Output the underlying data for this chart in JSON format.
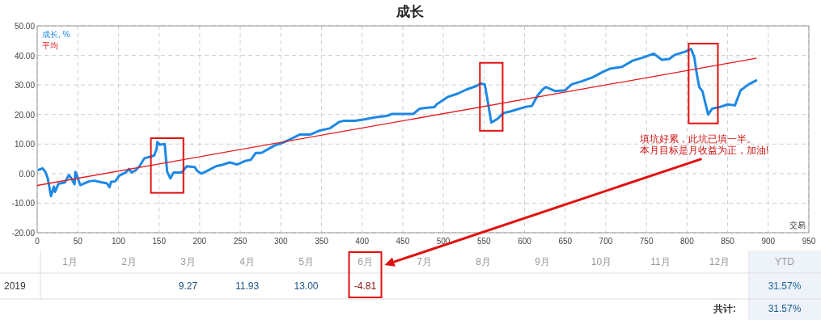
{
  "chart_data": [
    {
      "type": "line",
      "title": "成长",
      "xlabel": "交易",
      "xlim": [
        0,
        950
      ],
      "xticks": [
        0,
        50,
        100,
        150,
        200,
        250,
        300,
        350,
        400,
        450,
        500,
        550,
        600,
        650,
        700,
        750,
        800,
        850,
        900,
        950
      ],
      "ylim": [
        -20,
        50
      ],
      "yticks": [
        {
          "value": -20,
          "label": "-20.00"
        },
        {
          "value": -10,
          "label": "-10.00"
        },
        {
          "value": 0,
          "label": "0.00"
        },
        {
          "value": 10,
          "label": "10.00"
        },
        {
          "value": 20,
          "label": "20.00"
        },
        {
          "value": 30,
          "label": "30.00"
        },
        {
          "value": 40,
          "label": "40.00"
        },
        {
          "value": 50,
          "label": "50.00"
        }
      ],
      "grid": true,
      "legend": "top left",
      "line_style": "solid",
      "series": [
        {
          "name": "成长, %",
          "color": "#1e88e5",
          "x": [
            2,
            6.5,
            10,
            13,
            17,
            20.5,
            22,
            26,
            34,
            39,
            42,
            46,
            47,
            49,
            53,
            64,
            70,
            80,
            86,
            89,
            91,
            96,
            101,
            109,
            113,
            116,
            121,
            126,
            132,
            139,
            144,
            147,
            148,
            151,
            157,
            160,
            164,
            168,
            178,
            184,
            194,
            197,
            202,
            209,
            220,
            227,
            237,
            246,
            256,
            263,
            269,
            276,
            285,
            292,
            300,
            310,
            323,
            336,
            347,
            360,
            372,
            378,
            391,
            404,
            417,
            430,
            437,
            463,
            471,
            481,
            489,
            492,
            505,
            518,
            528,
            541,
            546,
            551,
            554,
            559,
            566,
            574,
            583,
            600,
            609,
            616,
            622,
            626,
            638,
            650,
            658,
            671,
            684,
            697,
            705,
            720,
            733,
            746,
            759,
            769,
            778,
            785,
            798,
            805,
            809,
            812,
            815,
            819,
            826,
            831,
            840,
            850,
            859,
            866,
            876,
            885
          ],
          "values": [
            1.3,
            1.8,
            0.6,
            -1.6,
            -7.6,
            -4.4,
            -6.2,
            -3.5,
            -3,
            -0.5,
            -1.6,
            -3.6,
            0.6,
            -0.7,
            -3.9,
            -2.6,
            -2.4,
            -3,
            -3.3,
            -4.6,
            -2.8,
            -2.6,
            -0.7,
            0.4,
            1.6,
            0.4,
            1.1,
            2.5,
            5.2,
            5.7,
            6.1,
            8.4,
            10.7,
            9.8,
            10,
            0.6,
            -1.6,
            0.4,
            0.4,
            2.5,
            2.2,
            0.9,
            0,
            0.9,
            2.5,
            2.9,
            3.8,
            3.1,
            4.3,
            4.7,
            7,
            7,
            8.4,
            9.5,
            10.2,
            11.4,
            13.2,
            13.2,
            14.5,
            15.3,
            17.5,
            17.9,
            17.9,
            18.4,
            19.1,
            19.5,
            20.2,
            20.2,
            22,
            22.3,
            22.5,
            23.5,
            25.9,
            27.1,
            28.4,
            29.7,
            30.5,
            30.2,
            25.5,
            17.3,
            18.4,
            20.5,
            21.1,
            22.5,
            22.9,
            26.4,
            28.4,
            29.3,
            27.9,
            28.2,
            30.2,
            31.3,
            32.6,
            34.5,
            35.5,
            36.1,
            38.2,
            39.3,
            40.6,
            38.5,
            38.8,
            40.2,
            41.3,
            42.2,
            39.3,
            33.8,
            29.3,
            27.9,
            20,
            22,
            22.5,
            23.4,
            23.1,
            28.2,
            30.2,
            31.5
          ]
        },
        {
          "name": "平均",
          "color": "#e41a1c",
          "x": [
            0,
            885
          ],
          "values": [
            -4,
            39
          ]
        }
      ],
      "annotations": [
        "填坑好累，此坑已填一半。",
        "本月目标是月收益为正，加油!"
      ]
    },
    {
      "type": "heatmap",
      "categories": [
        "1月",
        "2月",
        "3月",
        "4月",
        "5月",
        "6月",
        "7月",
        "8月",
        "9月",
        "10月",
        "11月",
        "12月",
        "YTD"
      ],
      "y_categories": [
        "2019"
      ],
      "cells": [
        [
          null,
          null,
          9.27,
          11.93,
          13.0,
          -4.81,
          null,
          null,
          null,
          null,
          null,
          null,
          31.57
        ]
      ],
      "cell_labels": [
        [
          null,
          null,
          "9.27",
          "11.93",
          "13.00",
          "-4.81",
          null,
          null,
          null,
          null,
          null,
          null,
          "31.57%"
        ]
      ],
      "annotations": [
        "共计:",
        "31.57%"
      ]
    }
  ]
}
